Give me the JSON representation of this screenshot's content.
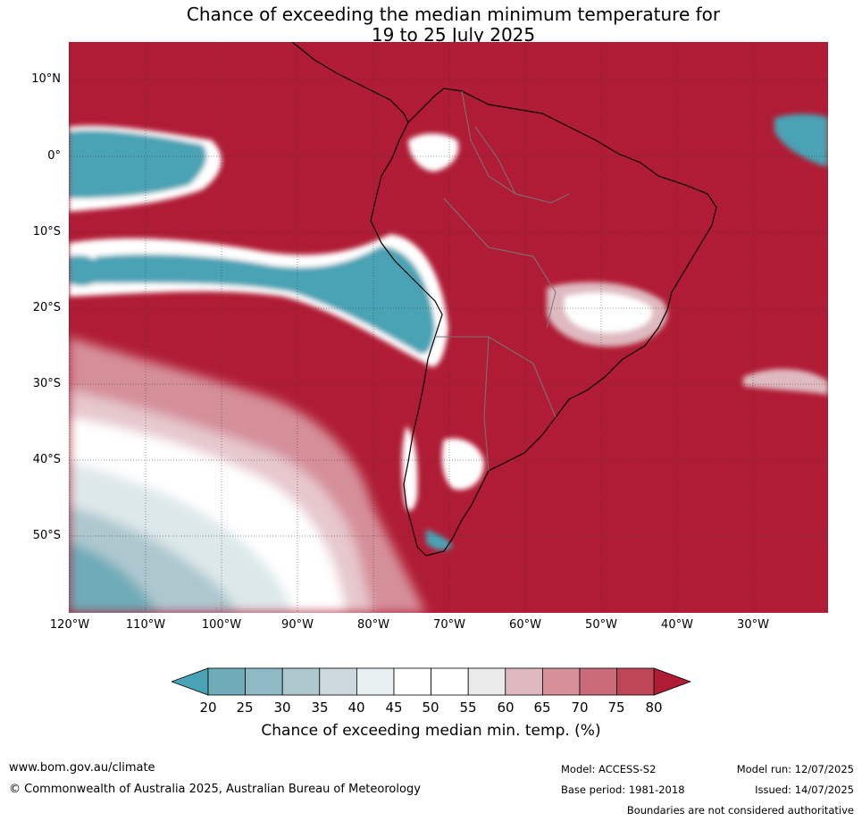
{
  "title": {
    "line1": "Chance of exceeding the median minimum temperature for",
    "line2": "19 to 25 July 2025"
  },
  "map": {
    "lat_labels": [
      "10°N",
      "0°",
      "10°S",
      "20°S",
      "30°S",
      "40°S",
      "50°S"
    ],
    "lon_labels": [
      "120°W",
      "110°W",
      "100°W",
      "90°W",
      "80°W",
      "70°W",
      "60°W",
      "50°W",
      "40°W",
      "30°W"
    ],
    "colors": {
      "high": "#b01c35",
      "low": "#4aa3b4",
      "neutral": "#ffffff"
    }
  },
  "colorbar": {
    "ticks": [
      "20",
      "25",
      "30",
      "35",
      "40",
      "45",
      "50",
      "55",
      "60",
      "65",
      "70",
      "75",
      "80"
    ],
    "label": "Chance of exceeding median min. temp. (%)",
    "colors": [
      "#4aa3b4",
      "#6eacb8",
      "#8ebac6",
      "#adc7cf",
      "#cdd9dc",
      "#e8eff1",
      "#ffffff",
      "#ffffff",
      "#ebeaeb",
      "#dfb9c0",
      "#d58f99",
      "#c96b79",
      "#bf4656",
      "#b01c35"
    ]
  },
  "footer": {
    "website": "www.bom.gov.au/climate",
    "copyright": "© Commonwealth of Australia 2025, Australian Bureau of Meteorology",
    "model": "Model: ACCESS-S2",
    "base_period": "Base period: 1981-2018",
    "model_run": "Model run: 12/07/2025",
    "issued": "Issued: 14/07/2025",
    "disclaimer": "Boundaries are not considered authoritative"
  }
}
